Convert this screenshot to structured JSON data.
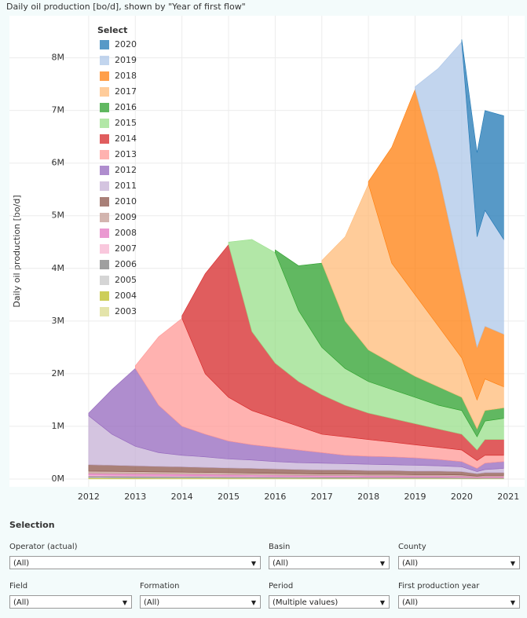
{
  "chart_data": {
    "type": "stacked_area",
    "title": "Daily oil production [bo/d], shown by \"Year of first flow\"",
    "y_label": "Daily oil production [bo/d]",
    "legend_title": "Select",
    "x": [
      2012,
      2012.5,
      2013,
      2013.5,
      2014,
      2014.5,
      2015,
      2015.5,
      2016,
      2016.5,
      2017,
      2017.5,
      2018,
      2018.5,
      2019,
      2019.5,
      2020,
      2020.33,
      2020.5,
      2020.9
    ],
    "xlim": [
      2010.3,
      2021.35
    ],
    "xticks": [
      2012,
      2013,
      2014,
      2015,
      2016,
      2017,
      2018,
      2019,
      2020,
      2021
    ],
    "ylim": [
      -150000,
      8800000
    ],
    "yticks": [
      {
        "value": 0,
        "label": "0M"
      },
      {
        "value": 1000000,
        "label": "1M"
      },
      {
        "value": 2000000,
        "label": "2M"
      },
      {
        "value": 3000000,
        "label": "3M"
      },
      {
        "value": 4000000,
        "label": "4M"
      },
      {
        "value": 5000000,
        "label": "5M"
      },
      {
        "value": 6000000,
        "label": "6M"
      },
      {
        "value": 7000000,
        "label": "7M"
      },
      {
        "value": 8000000,
        "label": "8M"
      }
    ],
    "grid": true,
    "series": [
      {
        "name": "2003",
        "color": "#dbdb8d",
        "values": [
          9000,
          8000,
          8000,
          8000,
          9000,
          8000,
          7000,
          6000,
          6000,
          5000,
          4000,
          4000,
          4000,
          4000,
          4000,
          4000,
          3000,
          3000,
          4000,
          4000
        ]
      },
      {
        "name": "2004",
        "color": "#bcbd22",
        "values": [
          9000,
          9000,
          9000,
          8000,
          8000,
          8000,
          7000,
          7000,
          7000,
          6000,
          6000,
          6000,
          5000,
          5000,
          5000,
          5000,
          5000,
          4000,
          4000,
          4000
        ]
      },
      {
        "name": "2005",
        "color": "#c7c7c7",
        "values": [
          15000,
          15000,
          14000,
          14000,
          13000,
          13000,
          12000,
          12000,
          11000,
          11000,
          10000,
          10000,
          10000,
          10000,
          9000,
          9000,
          8000,
          6000,
          7000,
          7000
        ]
      },
      {
        "name": "2006",
        "color": "#7f7f7f",
        "values": [
          20000,
          19000,
          19000,
          18000,
          17000,
          16000,
          15000,
          15000,
          14000,
          13000,
          13000,
          13000,
          12000,
          12000,
          11000,
          11000,
          10000,
          7000,
          8000,
          8000
        ]
      },
      {
        "name": "2007",
        "color": "#f7b6d2",
        "values": [
          22000,
          21000,
          20000,
          19000,
          18000,
          18000,
          17000,
          16000,
          15000,
          14000,
          13000,
          13000,
          12000,
          12000,
          11000,
          11000,
          10000,
          7000,
          9000,
          9000
        ]
      },
      {
        "name": "2008",
        "color": "#e377c2",
        "values": [
          30000,
          29000,
          28000,
          27000,
          26000,
          25000,
          24000,
          22000,
          21000,
          20000,
          19000,
          19000,
          18000,
          18000,
          17000,
          17000,
          16000,
          11000,
          14000,
          14000
        ]
      },
      {
        "name": "2009",
        "color": "#c49c94",
        "values": [
          45000,
          44000,
          42000,
          41000,
          39000,
          37000,
          36000,
          34000,
          32000,
          31000,
          29000,
          29000,
          27000,
          27000,
          25000,
          25000,
          24000,
          17000,
          20000,
          20000
        ]
      },
      {
        "name": "2010",
        "color": "#8c564b",
        "values": [
          120000,
          115000,
          110000,
          105000,
          100000,
          95000,
          92000,
          88000,
          84000,
          80000,
          76000,
          76000,
          72000,
          72000,
          68000,
          68000,
          64000,
          45000,
          54000,
          54000
        ]
      },
      {
        "name": "2011",
        "color": "#c5b0d5",
        "values": [
          930000,
          590000,
          370000,
          260000,
          220000,
          200000,
          170000,
          160000,
          140000,
          130000,
          130000,
          120000,
          120000,
          110000,
          110000,
          100000,
          90000,
          40000,
          60000,
          80000
        ]
      },
      {
        "name": "2012",
        "color": "#9467bd",
        "values": [
          50000,
          850000,
          1480000,
          900000,
          550000,
          430000,
          340000,
          290000,
          270000,
          240000,
          200000,
          160000,
          150000,
          150000,
          140000,
          120000,
          100000,
          60000,
          120000,
          130000
        ]
      },
      {
        "name": "2013",
        "color": "#ff9896",
        "values": [
          null,
          null,
          50000,
          1300000,
          2050000,
          1150000,
          830000,
          650000,
          550000,
          450000,
          350000,
          350000,
          320000,
          280000,
          250000,
          230000,
          220000,
          150000,
          150000,
          120000
        ]
      },
      {
        "name": "2014",
        "color": "#d62728",
        "values": [
          null,
          null,
          null,
          null,
          50000,
          1900000,
          2900000,
          1500000,
          1050000,
          850000,
          750000,
          600000,
          500000,
          450000,
          400000,
          350000,
          300000,
          200000,
          300000,
          300000
        ]
      },
      {
        "name": "2015",
        "color": "#98df8a",
        "values": [
          null,
          null,
          null,
          null,
          null,
          null,
          50000,
          1750000,
          2100000,
          1350000,
          900000,
          700000,
          600000,
          550000,
          500000,
          450000,
          450000,
          250000,
          350000,
          400000
        ]
      },
      {
        "name": "2016",
        "color": "#2ca02c",
        "values": [
          null,
          null,
          null,
          null,
          null,
          null,
          null,
          null,
          50000,
          850000,
          1600000,
          900000,
          600000,
          500000,
          400000,
          350000,
          250000,
          150000,
          200000,
          200000
        ]
      },
      {
        "name": "2017",
        "color": "#ffbb78",
        "values": [
          null,
          null,
          null,
          null,
          null,
          null,
          null,
          null,
          null,
          null,
          50000,
          1600000,
          3150000,
          1900000,
          1550000,
          1150000,
          750000,
          550000,
          600000,
          400000
        ]
      },
      {
        "name": "2018",
        "color": "#ff7f0e",
        "values": [
          null,
          null,
          null,
          null,
          null,
          null,
          null,
          null,
          null,
          null,
          null,
          null,
          50000,
          2200000,
          3900000,
          2900000,
          1500000,
          1000000,
          1000000,
          1000000
        ]
      },
      {
        "name": "2019",
        "color": "#aec7e8",
        "values": [
          null,
          null,
          null,
          null,
          null,
          null,
          null,
          null,
          null,
          null,
          null,
          null,
          null,
          null,
          50000,
          2000000,
          4500000,
          2100000,
          2200000,
          1800000
        ]
      },
      {
        "name": "2020",
        "color": "#1f77b4",
        "values": [
          null,
          null,
          null,
          null,
          null,
          null,
          null,
          null,
          null,
          null,
          null,
          null,
          null,
          null,
          null,
          null,
          50000,
          1600000,
          1900000,
          2350000
        ]
      }
    ]
  },
  "selection": {
    "title": "Selection",
    "filters": [
      {
        "label": "Operator (actual)",
        "value": "(All)"
      },
      {
        "label": "Basin",
        "value": "(All)"
      },
      {
        "label": "County",
        "value": "(All)"
      },
      {
        "label": "Field",
        "value": "(All)"
      },
      {
        "label": "Formation",
        "value": "(All)"
      },
      {
        "label": "Period",
        "value": "(Multiple values)"
      },
      {
        "label": "First production year",
        "value": "(All)"
      }
    ]
  }
}
